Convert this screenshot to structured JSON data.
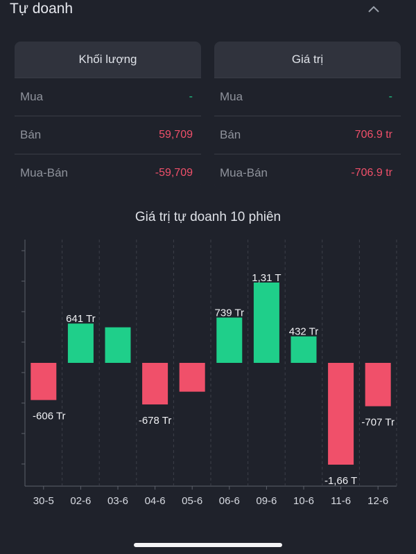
{
  "header": {
    "title": "Tự doanh"
  },
  "volume_card": {
    "title": "Khối lượng",
    "rows": [
      {
        "label": "Mua",
        "value": "-",
        "color": "green"
      },
      {
        "label": "Bán",
        "value": "59,709",
        "color": "red"
      },
      {
        "label": "Mua-Bán",
        "value": "-59,709",
        "color": "red"
      }
    ]
  },
  "value_card": {
    "title": "Giá trị",
    "rows": [
      {
        "label": "Mua",
        "value": "-",
        "color": "green"
      },
      {
        "label": "Bán",
        "value": "706.9 tr",
        "color": "red"
      },
      {
        "label": "Mua-Bán",
        "value": "-706.9 tr",
        "color": "red"
      }
    ]
  },
  "colors": {
    "positive": "#1fcf8a",
    "negative": "#f0506a"
  },
  "chart_data": {
    "type": "bar",
    "title": "Giá trị tự doanh 10 phiên",
    "categories": [
      "30-5",
      "02-6",
      "03-6",
      "04-6",
      "05-6",
      "06-6",
      "09-6",
      "10-6",
      "11-6",
      "12-6"
    ],
    "values": [
      -606,
      641,
      580,
      -678,
      -470,
      739,
      1310,
      432,
      -1660,
      -707
    ],
    "labels": [
      "-606 Tr",
      "641 Tr",
      "",
      "-678 Tr",
      "",
      "739 Tr",
      "1,31 T",
      "432 Tr",
      "-1,66 T",
      "-707 Tr"
    ],
    "ylim": [
      -2000,
      2000
    ],
    "grid": "vertical-dashed",
    "legend": "none"
  }
}
